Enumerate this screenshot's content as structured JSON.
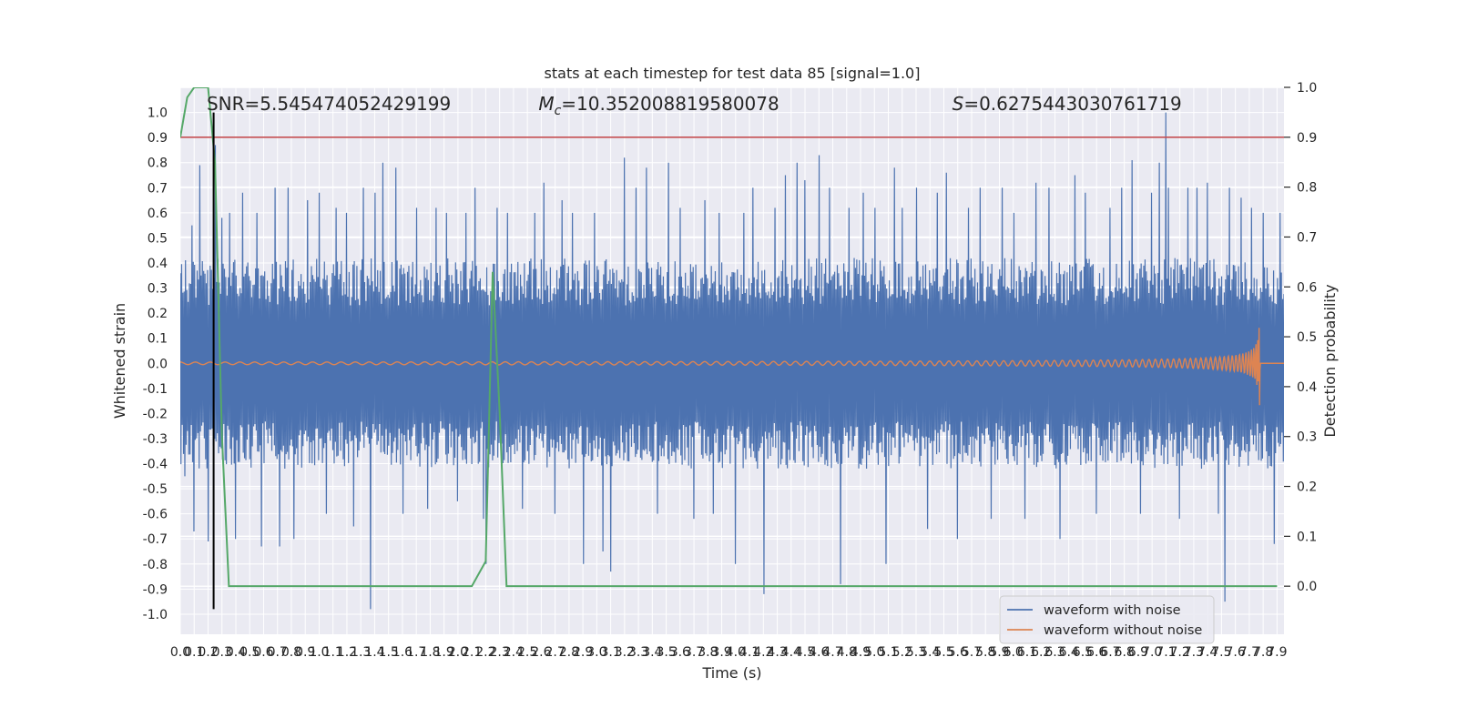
{
  "chart_data": {
    "type": "line",
    "title": "stats at each timestep for test data 85 [signal=1.0]",
    "xlabel": "Time (s)",
    "ylabel_left": "Whitened strain",
    "ylabel_right": "Detection probability",
    "xlim": [
      0.0,
      7.95
    ],
    "ylim_left": [
      -1.08,
      1.1
    ],
    "ylim_right": [
      -0.0964,
      1.0
    ],
    "x_ticks": [
      "0.0",
      "0.1",
      "0.2",
      "0.3",
      "0.4",
      "0.5",
      "0.6",
      "0.7",
      "0.8",
      "0.9",
      "1.0",
      "1.1",
      "1.2",
      "1.3",
      "1.4",
      "1.5",
      "1.6",
      "1.7",
      "1.8",
      "1.9",
      "2.0",
      "2.1",
      "2.2",
      "2.3",
      "2.4",
      "2.5",
      "2.6",
      "2.7",
      "2.8",
      "2.9",
      "3.0",
      "3.1",
      "3.2",
      "3.3",
      "3.4",
      "3.5",
      "3.6",
      "3.7",
      "3.8",
      "3.9",
      "4.0",
      "4.1",
      "4.2",
      "4.3",
      "4.4",
      "4.5",
      "4.6",
      "4.7",
      "4.8",
      "4.9",
      "5.0",
      "5.1",
      "5.2",
      "5.3",
      "5.4",
      "5.5",
      "5.6",
      "5.7",
      "5.8",
      "5.9",
      "6.0",
      "6.1",
      "6.2",
      "6.3",
      "6.4",
      "6.5",
      "6.6",
      "6.7",
      "6.8",
      "6.9",
      "7.0",
      "7.1",
      "7.2",
      "7.3",
      "7.4",
      "7.5",
      "7.6",
      "7.7",
      "7.8",
      "7.9"
    ],
    "y_ticks_left": [
      "-1.0",
      "-0.9",
      "-0.8",
      "-0.7",
      "-0.6",
      "-0.5",
      "-0.4",
      "-0.3",
      "-0.2",
      "-0.1",
      "0.0",
      "0.1",
      "0.2",
      "0.3",
      "0.4",
      "0.5",
      "0.6",
      "0.7",
      "0.8",
      "0.9",
      "1.0"
    ],
    "y_ticks_right": [
      "0.0",
      "0.1",
      "0.2",
      "0.3",
      "0.4",
      "0.5",
      "0.6",
      "0.7",
      "0.8",
      "0.9",
      "1.0"
    ],
    "annotations": [
      {
        "text": "SNR=5.545474052429199",
        "x": 0.19
      },
      {
        "text": "=10.352008819580078",
        "math": "M",
        "sub": "c",
        "x": 2.58
      },
      {
        "text": "=0.6275443030761719",
        "math": "S",
        "x": 5.56
      }
    ],
    "threshold_line": {
      "axis": "right",
      "value": 0.9,
      "color": "#c44e52"
    },
    "vertical_line": {
      "x": 0.24,
      "y_range": [
        -0.98,
        1.0
      ],
      "color": "#000000"
    },
    "grid": true,
    "legend": {
      "position": "lower right"
    },
    "series": [
      {
        "name": "waveform with noise",
        "axis": "left",
        "color": "#4c72b0",
        "style": "dense-noise",
        "typical_abs": 0.42,
        "peaks": [
          [
            0.03,
            -0.45
          ],
          [
            0.08,
            0.55
          ],
          [
            0.1,
            -0.67
          ],
          [
            0.14,
            0.79
          ],
          [
            0.2,
            -0.71
          ],
          [
            0.25,
            0.87
          ],
          [
            0.3,
            0.58
          ],
          [
            0.36,
            0.6
          ],
          [
            0.4,
            -0.7
          ],
          [
            0.45,
            0.68
          ],
          [
            0.55,
            0.6
          ],
          [
            0.58,
            -0.73
          ],
          [
            0.68,
            0.7
          ],
          [
            0.72,
            -0.73
          ],
          [
            0.78,
            0.7
          ],
          [
            0.82,
            -0.7
          ],
          [
            0.92,
            0.65
          ],
          [
            1.0,
            0.68
          ],
          [
            1.05,
            -0.6
          ],
          [
            1.12,
            0.62
          ],
          [
            1.2,
            0.6
          ],
          [
            1.25,
            -0.65
          ],
          [
            1.32,
            0.7
          ],
          [
            1.37,
            -0.98
          ],
          [
            1.4,
            0.68
          ],
          [
            1.46,
            0.8
          ],
          [
            1.55,
            0.78
          ],
          [
            1.6,
            -0.6
          ],
          [
            1.7,
            0.62
          ],
          [
            1.78,
            -0.58
          ],
          [
            1.84,
            0.62
          ],
          [
            1.92,
            0.6
          ],
          [
            2.0,
            -0.55
          ],
          [
            2.06,
            0.6
          ],
          [
            2.12,
            0.7
          ],
          [
            2.18,
            -0.62
          ],
          [
            2.2,
            -0.8
          ],
          [
            2.28,
            0.62
          ],
          [
            2.36,
            0.6
          ],
          [
            2.46,
            -0.58
          ],
          [
            2.55,
            0.6
          ],
          [
            2.62,
            0.72
          ],
          [
            2.7,
            -0.6
          ],
          [
            2.75,
            0.65
          ],
          [
            2.82,
            0.6
          ],
          [
            2.9,
            -0.8
          ],
          [
            2.98,
            0.6
          ],
          [
            3.04,
            -0.75
          ],
          [
            3.1,
            -0.83
          ],
          [
            3.2,
            0.82
          ],
          [
            3.28,
            0.7
          ],
          [
            3.36,
            0.78
          ],
          [
            3.44,
            -0.6
          ],
          [
            3.52,
            0.8
          ],
          [
            3.6,
            0.62
          ],
          [
            3.7,
            -0.62
          ],
          [
            3.78,
            0.65
          ],
          [
            3.84,
            -0.6
          ],
          [
            3.88,
            0.6
          ],
          [
            4.0,
            -0.8
          ],
          [
            4.06,
            0.6
          ],
          [
            4.12,
            0.7
          ],
          [
            4.2,
            -0.92
          ],
          [
            4.28,
            0.62
          ],
          [
            4.36,
            0.75
          ],
          [
            4.44,
            0.8
          ],
          [
            4.5,
            0.73
          ],
          [
            4.6,
            0.83
          ],
          [
            4.68,
            0.7
          ],
          [
            4.76,
            -0.88
          ],
          [
            4.82,
            0.62
          ],
          [
            4.92,
            0.68
          ],
          [
            5.0,
            0.62
          ],
          [
            5.08,
            -0.8
          ],
          [
            5.14,
            0.78
          ],
          [
            5.2,
            0.62
          ],
          [
            5.3,
            0.7
          ],
          [
            5.38,
            -0.66
          ],
          [
            5.45,
            0.68
          ],
          [
            5.52,
            0.76
          ],
          [
            5.6,
            -0.7
          ],
          [
            5.68,
            0.62
          ],
          [
            5.76,
            0.7
          ],
          [
            5.84,
            -0.62
          ],
          [
            5.92,
            0.7
          ],
          [
            6.0,
            0.6
          ],
          [
            6.08,
            -0.62
          ],
          [
            6.16,
            0.72
          ],
          [
            6.26,
            0.7
          ],
          [
            6.34,
            -0.7
          ],
          [
            6.44,
            0.75
          ],
          [
            6.52,
            0.68
          ],
          [
            6.6,
            -0.6
          ],
          [
            6.7,
            0.62
          ],
          [
            6.78,
            0.7
          ],
          [
            6.86,
            0.81
          ],
          [
            6.92,
            -0.6
          ],
          [
            7.0,
            0.68
          ],
          [
            7.05,
            0.8
          ],
          [
            7.12,
            0.7
          ],
          [
            7.2,
            -0.62
          ],
          [
            7.26,
            0.7
          ],
          [
            7.32,
            0.7
          ],
          [
            7.4,
            0.72
          ],
          [
            7.48,
            -0.6
          ],
          [
            7.52,
            -0.95
          ],
          [
            7.56,
            0.7
          ],
          [
            7.64,
            0.66
          ],
          [
            7.72,
            0.62
          ],
          [
            7.8,
            0.6
          ],
          [
            7.88,
            -0.72
          ],
          [
            7.92,
            0.6
          ],
          [
            7.1,
            1.0
          ]
        ]
      },
      {
        "name": "waveform without noise",
        "axis": "left",
        "color": "#dd8452",
        "style": "chirp",
        "amplitude_start": 0.005,
        "amplitude_peak": 0.19,
        "merger_time": 7.78,
        "end_time": 7.8
      },
      {
        "name": "detection probability",
        "axis": "right",
        "color": "#55a868",
        "x": [
          0.0,
          0.05,
          0.1,
          0.15,
          0.2,
          0.25,
          0.3,
          0.35,
          0.4,
          1.4,
          2.1,
          2.2,
          2.25,
          2.3,
          2.35,
          2.4,
          7.9
        ],
        "y": [
          0.9,
          0.98,
          1.0,
          1.0,
          1.0,
          0.85,
          0.3,
          0.0,
          0.0,
          0.0,
          0.0,
          0.05,
          0.63,
          0.35,
          0.0,
          0.0,
          0.0
        ]
      }
    ]
  }
}
